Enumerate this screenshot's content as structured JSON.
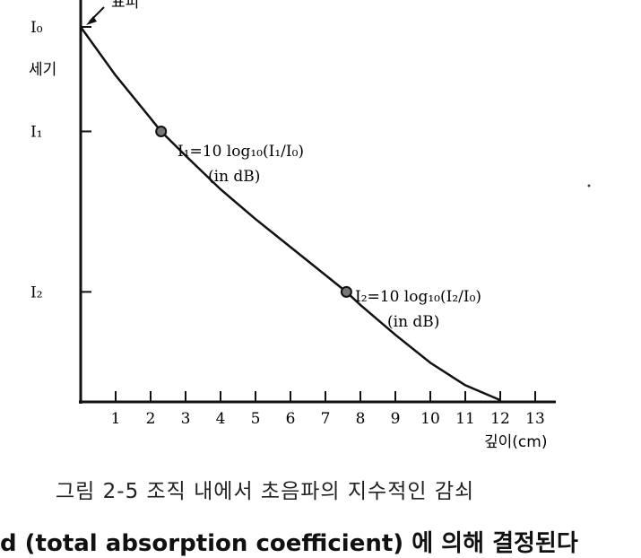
{
  "chart_data": {
    "type": "line",
    "title": "",
    "xlabel": "깊이(cm)",
    "ylabel": "세기",
    "x_ticks": [
      1,
      2,
      3,
      4,
      5,
      6,
      7,
      8,
      9,
      10,
      11,
      12,
      13
    ],
    "xlim": [
      0,
      14
    ],
    "y_ticks": [
      "I₀",
      "I₁",
      "I₂"
    ],
    "grid": false,
    "series": [
      {
        "x": [
          0,
          1,
          2,
          2.3,
          3,
          4,
          5,
          6,
          7,
          7.6,
          8,
          9,
          10,
          11,
          12
        ],
        "y_relative": [
          1.0,
          0.87,
          0.755,
          0.72,
          0.655,
          0.565,
          0.485,
          0.41,
          0.335,
          0.29,
          0.255,
          0.175,
          0.1,
          0.04,
          0.0
        ]
      }
    ],
    "highlighted_points": [
      {
        "x": 2.3,
        "level": "I₁"
      },
      {
        "x": 7.6,
        "level": "I₂"
      }
    ],
    "annotations": {
      "origin_label": "표피",
      "i1_formula": "I₁=10 log₁₀(I₁/I₀)",
      "i1_unit": "(in dB)",
      "i2_formula": "I₂=10 log₁₀(I₂/I₀)",
      "i2_unit": "(in dB)"
    }
  },
  "caption": "그림 2-5  조직 내에서 초음파의 지수적인 감쇠",
  "next_text": "d (total absorption coefficient) 에 의해 결정된다"
}
